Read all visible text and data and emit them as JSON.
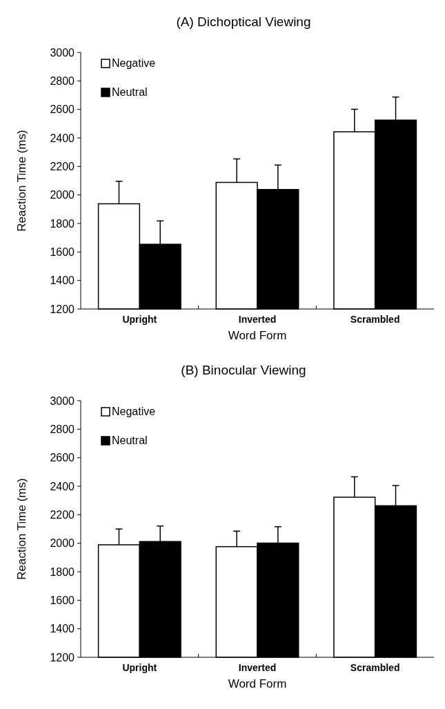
{
  "chart_data": [
    {
      "type": "bar",
      "title": "(A) Dichoptical Viewing",
      "xlabel": "Word Form",
      "ylabel": "Reaction Time (ms)",
      "categories": [
        "Upright",
        "Inverted",
        "Scrambled"
      ],
      "ylim": [
        1200,
        3000
      ],
      "yticks": [
        1200,
        1400,
        1600,
        1800,
        2000,
        2200,
        2400,
        2600,
        2800,
        3000
      ],
      "legend": "top left",
      "series": [
        {
          "name": "Negative",
          "color": "#ffffff",
          "values": [
            1938,
            2088,
            2443
          ],
          "errors": [
            [
              1938,
              2096
            ],
            [
              2088,
              2253
            ],
            [
              2443,
              2601
            ]
          ]
        },
        {
          "name": "Neutral",
          "color": "#000000",
          "values": [
            1654,
            2038,
            2525
          ],
          "errors": [
            [
              1654,
              1818
            ],
            [
              2038,
              2210
            ],
            [
              2525,
              2687
            ]
          ]
        }
      ]
    },
    {
      "type": "bar",
      "title": "(B) Binocular Viewing",
      "xlabel": "Word Form",
      "ylabel": "Reaction Time (ms)",
      "categories": [
        "Upright",
        "Inverted",
        "Scrambled"
      ],
      "ylim": [
        1200,
        3000
      ],
      "yticks": [
        1200,
        1400,
        1600,
        1800,
        2000,
        2200,
        2400,
        2600,
        2800,
        3000
      ],
      "legend": "top left",
      "series": [
        {
          "name": "Negative",
          "color": "#ffffff",
          "values": [
            1989,
            1976,
            2323
          ],
          "errors": [
            [
              1989,
              2100
            ],
            [
              1976,
              2085
            ],
            [
              2323,
              2466
            ]
          ]
        },
        {
          "name": "Neutral",
          "color": "#000000",
          "values": [
            2012,
            2001,
            2263
          ],
          "errors": [
            [
              2012,
              2121
            ],
            [
              2001,
              2116
            ],
            [
              2263,
              2405
            ]
          ]
        }
      ]
    }
  ]
}
